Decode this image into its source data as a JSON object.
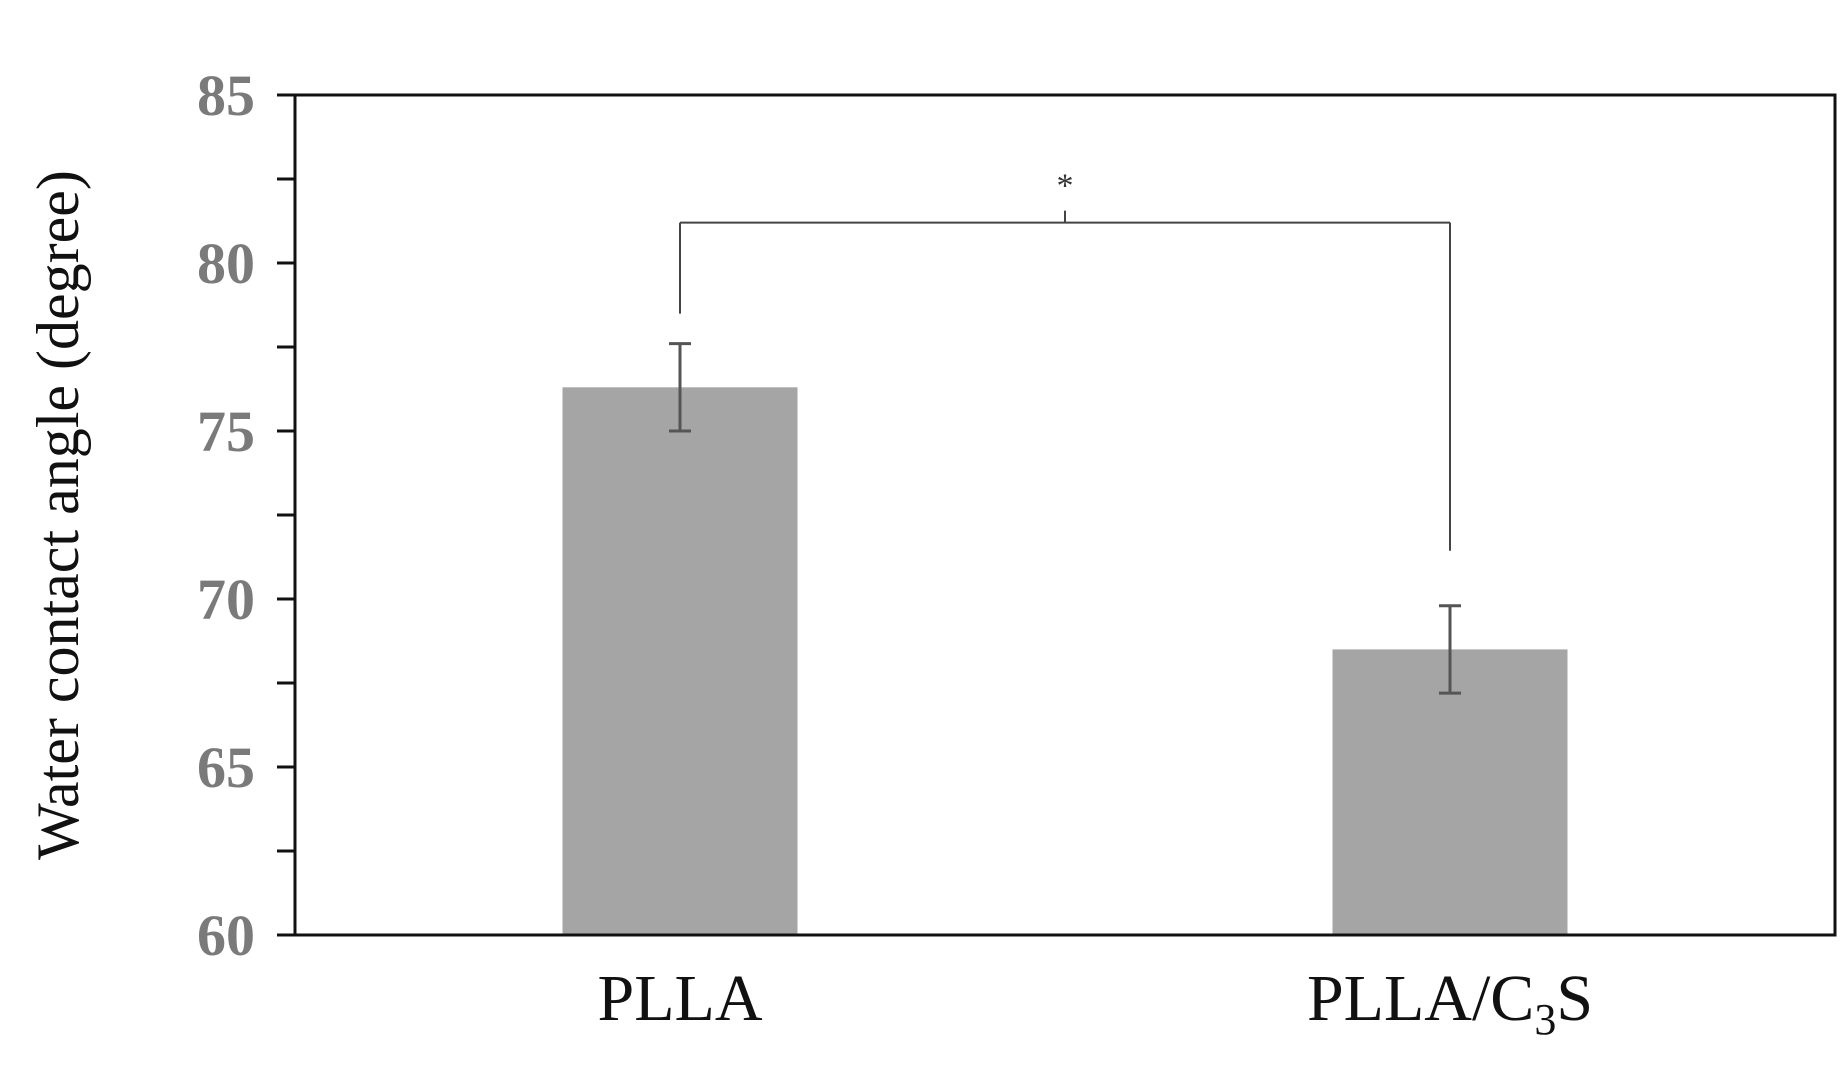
{
  "chart_data": {
    "type": "bar",
    "title": "",
    "xlabel": "",
    "ylabel": "Water contact angle (degree)",
    "ylim": [
      60,
      85
    ],
    "yticks": [
      60,
      65,
      70,
      75,
      80,
      85
    ],
    "categories": [
      "PLLA",
      "PLLA/C3S"
    ],
    "category_display": [
      {
        "main": "PLLA/C",
        "sub": "3",
        "tail": "S"
      }
    ],
    "values": [
      76.3,
      68.5
    ],
    "errors": [
      1.3,
      1.3
    ],
    "bar_color": "#a5a5a5",
    "error_color": "#555555",
    "grid": false,
    "legend": "none",
    "significance": {
      "between": [
        0,
        1
      ],
      "label": "*"
    }
  }
}
